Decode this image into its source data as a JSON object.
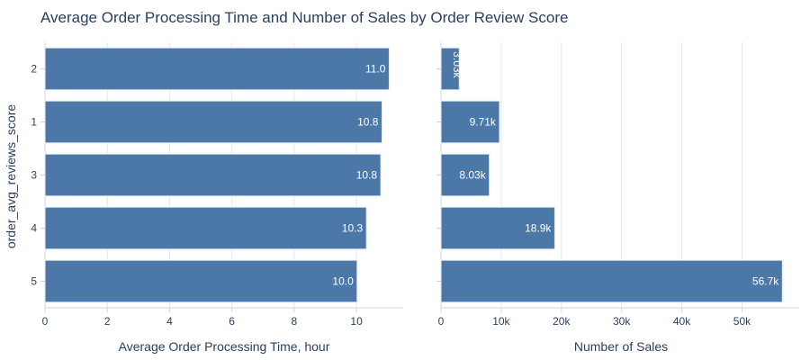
{
  "title": "Average Order Processing Time and Number of Sales by Order Review Score",
  "chart_data": {
    "type": "bar",
    "orientation": "horizontal",
    "categories": [
      "2",
      "1",
      "3",
      "4",
      "5"
    ],
    "ylabel": "order_avg_reviews_score",
    "bar_color": "#4c78a8",
    "grid": true,
    "subplots": [
      {
        "xlabel": "Average Order Processing Time, hour",
        "values": [
          11.05,
          10.82,
          10.78,
          10.32,
          10.02
        ],
        "value_labels": [
          "11.0",
          "10.8",
          "10.8",
          "10.3",
          "10.0"
        ],
        "xlim": [
          0,
          11.5
        ],
        "xticks": [
          0,
          2,
          4,
          6,
          8,
          10
        ],
        "xtick_labels": [
          "0",
          "2",
          "4",
          "6",
          "8",
          "10"
        ]
      },
      {
        "xlabel": "Number of Sales",
        "values": [
          3030,
          9710,
          8030,
          18900,
          56700
        ],
        "value_labels": [
          "3.03k",
          "9.71k",
          "8.03k",
          "18.9k",
          "56.7k"
        ],
        "xlim": [
          0,
          59500
        ],
        "xticks": [
          0,
          10000,
          20000,
          30000,
          40000,
          50000
        ],
        "xtick_labels": [
          "0",
          "10k",
          "20k",
          "30k",
          "40k",
          "50k"
        ]
      }
    ]
  }
}
